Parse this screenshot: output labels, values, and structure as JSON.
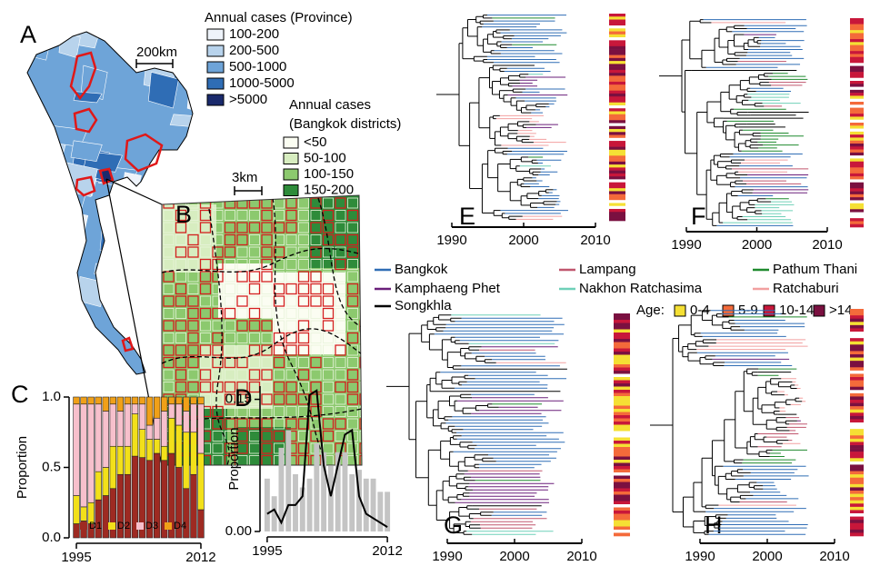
{
  "panel_labels": [
    "A",
    "B",
    "C",
    "D",
    "E",
    "F",
    "G",
    "H"
  ],
  "map": {
    "scale_bar": "200km",
    "inset_scale_bar": "3km",
    "province_legend": {
      "title": "Annual cases (Province)",
      "items": [
        {
          "label": "100-200",
          "color": "#eef3fa"
        },
        {
          "label": "200-500",
          "color": "#b8d3ec"
        },
        {
          "label": "500-1000",
          "color": "#6ea4d8"
        },
        {
          "label": "1000-5000",
          "color": "#2f6db5"
        },
        {
          "label": ">5000",
          "color": "#1a2a6c"
        }
      ]
    },
    "district_legend": {
      "title": [
        "Annual cases",
        "(Bangkok districts)"
      ],
      "items": [
        {
          "label": "<50",
          "color": "#fbfdf2"
        },
        {
          "label": "50-100",
          "color": "#d7edc0"
        },
        {
          "label": "100-150",
          "color": "#8cc96e"
        },
        {
          "label": "150-200",
          "color": "#2e8b3a"
        }
      ]
    }
  },
  "chart_data": [
    {
      "type": "stacked-bar",
      "y_label": "Proportion",
      "categories": [
        "1995",
        null,
        null,
        null,
        null,
        null,
        null,
        null,
        null,
        null,
        null,
        null,
        null,
        null,
        null,
        null,
        null,
        "2012"
      ],
      "ylim": [
        0,
        1
      ],
      "yticks": [
        {
          "value": 0,
          "label": "0.0"
        },
        0.5,
        {
          "value": 1,
          "label": "1.0"
        }
      ],
      "series": [
        {
          "name": "D1",
          "color": "#9e2a22",
          "values": [
            0.1,
            0.12,
            0.1,
            0.27,
            0.3,
            0.35,
            0.45,
            0.45,
            0.58,
            0.57,
            0.55,
            0.6,
            0.55,
            0.6,
            0.5,
            0.35,
            0.45,
            0.2
          ]
        },
        {
          "name": "D2",
          "color": "#f2e01a",
          "values": [
            0.2,
            0.1,
            0.15,
            0.2,
            0.2,
            0.3,
            0.2,
            0.2,
            0.3,
            0.2,
            0.15,
            0.1,
            0.1,
            0.25,
            0.3,
            0.4,
            0.3,
            0.4
          ]
        },
        {
          "name": "D3",
          "color": "#f7c0cc",
          "values": [
            0.65,
            0.73,
            0.7,
            0.48,
            0.4,
            0.3,
            0.25,
            0.3,
            0.07,
            0.18,
            0.1,
            0.15,
            0.25,
            0.1,
            0.15,
            0.15,
            0.2,
            0.35
          ]
        },
        {
          "name": "D4",
          "color": "#f0a018",
          "values": [
            0.05,
            0.05,
            0.05,
            0.05,
            0.1,
            0.05,
            0.1,
            0.05,
            0.05,
            0.05,
            0.2,
            0.15,
            0.1,
            0.05,
            0.05,
            0.1,
            0.05,
            0.05
          ]
        }
      ]
    },
    {
      "type": "bar-line",
      "y_label": "Proportion",
      "categories": [
        "1995",
        null,
        null,
        null,
        null,
        null,
        null,
        null,
        null,
        null,
        null,
        null,
        null,
        null,
        null,
        null,
        null,
        "2012"
      ],
      "ylim": [
        0,
        0.165
      ],
      "yticks": [
        {
          "value": 0,
          "label": "0.00"
        },
        0.15
      ],
      "series": [
        {
          "type": "bar",
          "color": "#c4c4c4",
          "values": [
            0.06,
            0.04,
            0.095,
            0.115,
            0.065,
            0.05,
            0.06,
            0.1,
            0.09,
            0.075,
            0.09,
            0.09,
            0.065,
            0.07,
            0.06,
            0.06,
            0.045,
            0.045
          ]
        },
        {
          "type": "line",
          "color": "#000000",
          "values": [
            0.02,
            0.025,
            0.01,
            0.03,
            0.03,
            0.04,
            0.155,
            0.16,
            0.075,
            0.04,
            0.075,
            0.11,
            0.115,
            0.04,
            0.02,
            0.015,
            0.01,
            0.005
          ]
        }
      ]
    }
  ],
  "trees": {
    "lineage_legend": [
      {
        "name": "Bangkok",
        "color": "#2f6db5"
      },
      {
        "name": "Lampang",
        "color": "#c0566e"
      },
      {
        "name": "Pathum Thani",
        "color": "#1f8a2e"
      },
      {
        "name": "Kamphaeng Phet",
        "color": "#6a1f7a"
      },
      {
        "name": "Nakhon Ratchasima",
        "color": "#6fd0b8"
      },
      {
        "name": "Ratchaburi",
        "color": "#f2a0a0"
      },
      {
        "name": "Songkhla",
        "color": "#000000"
      }
    ],
    "age_legend": {
      "title": "Age:",
      "items": [
        {
          "label": "0-4",
          "color": "#f5e034"
        },
        {
          "label": "5-9",
          "color": "#f46a3a"
        },
        {
          "label": "10-14",
          "color": "#c8173a"
        },
        {
          "label": ">14",
          "color": "#7a1040"
        }
      ]
    },
    "panels": [
      {
        "xlim": [
          1990,
          2010
        ],
        "xticks": [
          1990,
          2000,
          2010
        ]
      },
      {
        "xlim": [
          1990,
          2010
        ],
        "xticks": [
          1990,
          2000,
          2010
        ]
      },
      {
        "xlim": [
          1990,
          2010
        ],
        "xticks": [
          1990,
          2000,
          2010
        ]
      },
      {
        "xlim": [
          1990,
          2010
        ],
        "xticks": [
          1990,
          2000,
          2010
        ]
      }
    ]
  }
}
